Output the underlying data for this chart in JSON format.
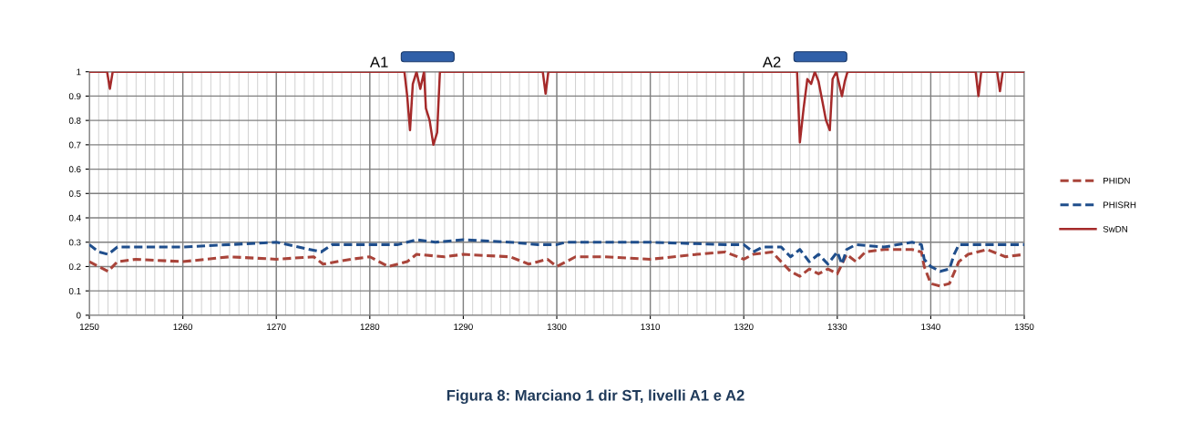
{
  "chart_data": {
    "type": "line",
    "title": "Figura 8: Marciano 1 dir ST, livelli A1 e A2",
    "xlim": [
      1250,
      1350
    ],
    "xticks": [
      1250,
      1260,
      1270,
      1280,
      1290,
      1300,
      1310,
      1320,
      1330,
      1340,
      1350
    ],
    "ylim": [
      0,
      1
    ],
    "yticks": [
      0,
      0.1,
      0.2,
      0.3,
      0.4,
      0.5,
      0.6,
      0.7,
      0.8,
      0.9,
      1
    ],
    "grid": true,
    "legend": "right",
    "marker": "none",
    "annotations": [
      {
        "text": "A1",
        "x": 1282,
        "y": 1
      },
      {
        "text": "A2",
        "x": 1324,
        "y": 1
      }
    ],
    "series": [
      {
        "name": "PHIDN",
        "color": "#a9443a",
        "line_style": "dashed",
        "x": [
          1250,
          1251,
          1252,
          1253,
          1255,
          1260,
          1265,
          1270,
          1274,
          1275,
          1278,
          1280,
          1282,
          1284,
          1285,
          1288,
          1290,
          1295,
          1297,
          1299,
          1300,
          1302,
          1305,
          1310,
          1315,
          1318,
          1320,
          1321,
          1323,
          1324,
          1325,
          1326,
          1327,
          1328,
          1329,
          1330,
          1331,
          1332,
          1333,
          1335,
          1338,
          1339,
          1339.3,
          1340,
          1341,
          1342,
          1343,
          1344,
          1346,
          1348,
          1350
        ],
        "values": [
          0.22,
          0.2,
          0.18,
          0.22,
          0.23,
          0.22,
          0.24,
          0.23,
          0.24,
          0.21,
          0.23,
          0.24,
          0.2,
          0.22,
          0.25,
          0.24,
          0.25,
          0.24,
          0.21,
          0.23,
          0.2,
          0.24,
          0.24,
          0.23,
          0.25,
          0.26,
          0.23,
          0.25,
          0.26,
          0.22,
          0.18,
          0.16,
          0.19,
          0.17,
          0.19,
          0.17,
          0.25,
          0.22,
          0.26,
          0.27,
          0.27,
          0.26,
          0.2,
          0.13,
          0.12,
          0.13,
          0.22,
          0.25,
          0.27,
          0.24,
          0.25
        ]
      },
      {
        "name": "PHISRH",
        "color": "#1f4e8c",
        "line_style": "dashed",
        "x": [
          1250,
          1251,
          1252,
          1253,
          1260,
          1265,
          1270,
          1274.8,
          1276,
          1280,
          1283,
          1285,
          1287,
          1290,
          1295,
          1298,
          1300,
          1301,
          1310,
          1318,
          1320,
          1321,
          1322,
          1324,
          1325,
          1326,
          1327,
          1328,
          1329,
          1330,
          1330.5,
          1331,
          1332,
          1335,
          1338,
          1339,
          1339.3,
          1340,
          1341,
          1342,
          1342.5,
          1343,
          1346,
          1350
        ],
        "values": [
          0.29,
          0.26,
          0.25,
          0.28,
          0.28,
          0.29,
          0.3,
          0.26,
          0.29,
          0.29,
          0.29,
          0.31,
          0.3,
          0.31,
          0.3,
          0.29,
          0.29,
          0.3,
          0.3,
          0.29,
          0.29,
          0.26,
          0.28,
          0.28,
          0.24,
          0.27,
          0.22,
          0.25,
          0.21,
          0.26,
          0.21,
          0.27,
          0.29,
          0.28,
          0.3,
          0.29,
          0.23,
          0.2,
          0.18,
          0.19,
          0.25,
          0.29,
          0.29,
          0.29
        ]
      },
      {
        "name": "SwDN",
        "color": "#a52a2a",
        "line_style": "solid",
        "x": [
          1250,
          1251.9,
          1252.2,
          1252.5,
          1283.7,
          1284.0,
          1284.3,
          1284.6,
          1285.0,
          1285.4,
          1285.8,
          1286.0,
          1286.4,
          1286.8,
          1287.2,
          1287.5,
          1298.5,
          1298.8,
          1299.1,
          1325.7,
          1326.0,
          1326.4,
          1326.8,
          1327.2,
          1327.6,
          1328.0,
          1328.4,
          1328.8,
          1329.2,
          1329.5,
          1329.9,
          1330.5,
          1330.8,
          1331.1,
          1344.8,
          1345.1,
          1345.4,
          1347.1,
          1347.4,
          1347.7,
          1350
        ],
        "values": [
          1,
          1,
          0.93,
          1,
          1,
          0.9,
          0.76,
          0.95,
          1,
          0.93,
          1,
          0.85,
          0.8,
          0.7,
          0.75,
          1,
          1,
          0.91,
          1,
          1,
          0.71,
          0.85,
          0.97,
          0.95,
          1,
          0.96,
          0.88,
          0.8,
          0.76,
          0.97,
          1,
          0.9,
          0.96,
          1,
          1,
          0.9,
          1,
          1,
          0.92,
          1,
          1
        ]
      }
    ]
  }
}
